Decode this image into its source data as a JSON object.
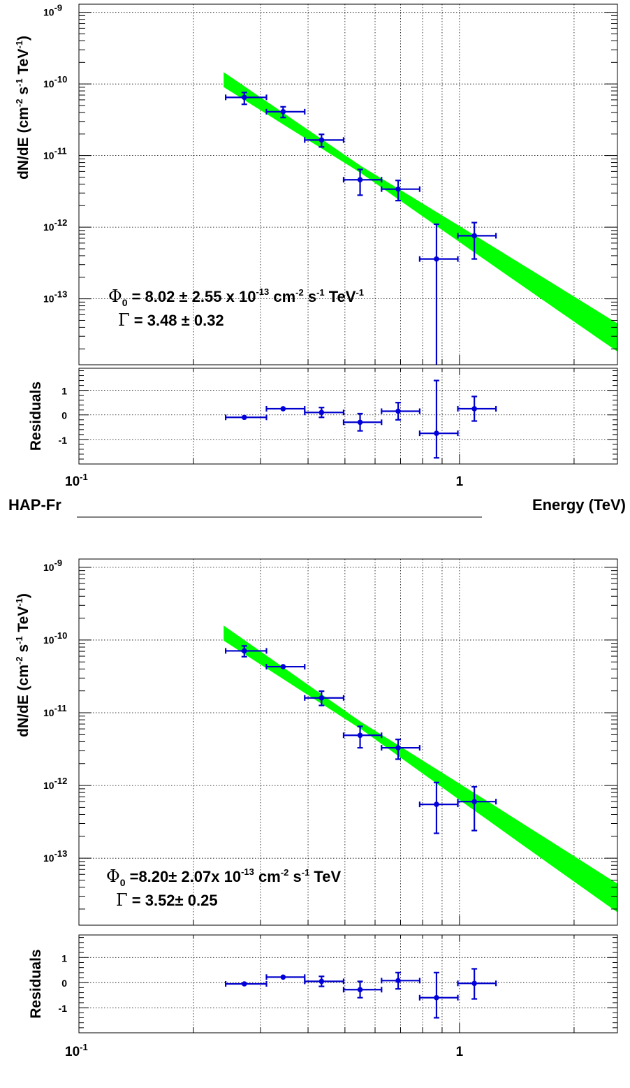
{
  "chart_data": [
    {
      "type": "scatter",
      "title": "",
      "xlabel": "Energy (TeV)",
      "ylabel": "dN/dE (cm^-2 s^-1 TeV^-1)",
      "xscale": "log",
      "yscale": "log",
      "xlim": [
        0.1,
        2.6
      ],
      "ylim": [
        1.2e-14,
        1.3e-09
      ],
      "grid": true,
      "corner_label": "HAP-Fr",
      "annotation": {
        "phi_text": " = 8.02 ± 2.55 x 10",
        "phi_exp": "-13",
        "phi_units": " cm",
        "gamma_text": " = 3.48 ± 0.32"
      },
      "fit": {
        "norm": 8.02e-13,
        "gamma": 3.48,
        "band_xrange": [
          0.24,
          2.6
        ]
      },
      "points": [
        {
          "x": 0.272,
          "y": 6.5e-11,
          "xlo": 0.243,
          "xhi": 0.311,
          "ylo": 5.2e-11,
          "yhi": 7.6e-11
        },
        {
          "x": 0.344,
          "y": 4.1e-11,
          "xlo": 0.311,
          "xhi": 0.392,
          "ylo": 3.4e-11,
          "yhi": 4.8e-11
        },
        {
          "x": 0.434,
          "y": 1.65e-11,
          "xlo": 0.392,
          "xhi": 0.496,
          "ylo": 1.32e-11,
          "yhi": 1.98e-11
        },
        {
          "x": 0.548,
          "y": 4.6e-12,
          "xlo": 0.496,
          "xhi": 0.624,
          "ylo": 2.8e-12,
          "yhi": 6.4e-12
        },
        {
          "x": 0.69,
          "y": 3.4e-12,
          "xlo": 0.624,
          "xhi": 0.786,
          "ylo": 2.35e-12,
          "yhi": 4.5e-12
        },
        {
          "x": 0.87,
          "y": 3.6e-13,
          "xlo": 0.786,
          "xhi": 0.99,
          "ylo": 1e-14,
          "yhi": 1.1e-12
        },
        {
          "x": 1.094,
          "y": 7.6e-13,
          "xlo": 0.99,
          "xhi": 1.247,
          "ylo": 3.6e-13,
          "yhi": 1.16e-12
        }
      ],
      "residuals": {
        "ylabel": "Residuals",
        "ylim": [
          -2.0,
          1.9
        ],
        "yticks": [
          "1",
          "0",
          "-1"
        ],
        "points": [
          {
            "x": 0.272,
            "y": -0.1,
            "xlo": 0.243,
            "xhi": 0.311,
            "ylo": -0.1,
            "yhi": -0.1
          },
          {
            "x": 0.344,
            "y": 0.25,
            "xlo": 0.311,
            "xhi": 0.392,
            "ylo": 0.25,
            "yhi": 0.25
          },
          {
            "x": 0.434,
            "y": 0.1,
            "xlo": 0.392,
            "xhi": 0.496,
            "ylo": -0.1,
            "yhi": 0.3
          },
          {
            "x": 0.548,
            "y": -0.3,
            "xlo": 0.496,
            "xhi": 0.624,
            "ylo": -0.65,
            "yhi": 0.05
          },
          {
            "x": 0.69,
            "y": 0.15,
            "xlo": 0.624,
            "xhi": 0.786,
            "ylo": -0.2,
            "yhi": 0.5
          },
          {
            "x": 0.87,
            "y": -0.75,
            "xlo": 0.786,
            "xhi": 0.99,
            "ylo": -1.75,
            "yhi": 1.4
          },
          {
            "x": 1.094,
            "y": 0.25,
            "xlo": 0.99,
            "xhi": 1.247,
            "ylo": -0.25,
            "yhi": 0.75
          }
        ]
      }
    },
    {
      "type": "scatter",
      "title": "",
      "xlabel": "",
      "ylabel": "dN/dE (cm^-2 s^-1 TeV^-1)",
      "xscale": "log",
      "yscale": "log",
      "xlim": [
        0.1,
        2.6
      ],
      "ylim": [
        1.2e-14,
        1.3e-09
      ],
      "grid": true,
      "corner_label": "",
      "annotation": {
        "phi_text": " =8.20± 2.07x 10",
        "phi_exp": "-13",
        "phi_units": " cm",
        "gamma_text": " = 3.52± 0.25"
      },
      "fit": {
        "norm": 8.2e-13,
        "gamma": 3.52,
        "band_xrange": [
          0.24,
          2.6
        ]
      },
      "points": [
        {
          "x": 0.272,
          "y": 7.1e-11,
          "xlo": 0.243,
          "xhi": 0.311,
          "ylo": 5.9e-11,
          "yhi": 8.3e-11
        },
        {
          "x": 0.344,
          "y": 4.3e-11,
          "xlo": 0.311,
          "xhi": 0.392,
          "ylo": 4.3e-11,
          "yhi": 4.3e-11
        },
        {
          "x": 0.434,
          "y": 1.6e-11,
          "xlo": 0.392,
          "xhi": 0.496,
          "ylo": 1.26e-11,
          "yhi": 1.98e-11
        },
        {
          "x": 0.548,
          "y": 4.9e-12,
          "xlo": 0.496,
          "xhi": 0.624,
          "ylo": 3.3e-12,
          "yhi": 6.5e-12
        },
        {
          "x": 0.69,
          "y": 3.3e-12,
          "xlo": 0.624,
          "xhi": 0.786,
          "ylo": 2.3e-12,
          "yhi": 4.3e-12
        },
        {
          "x": 0.87,
          "y": 5.5e-13,
          "xlo": 0.786,
          "xhi": 0.99,
          "ylo": 2.2e-13,
          "yhi": 1.1e-12
        },
        {
          "x": 1.094,
          "y": 6e-13,
          "xlo": 0.99,
          "xhi": 1.247,
          "ylo": 2.4e-13,
          "yhi": 9.6e-13
        }
      ],
      "residuals": {
        "ylabel": "Residuals",
        "ylim": [
          -2.0,
          1.9
        ],
        "yticks": [
          "1",
          "0",
          "-1"
        ],
        "points": [
          {
            "x": 0.272,
            "y": -0.05,
            "xlo": 0.243,
            "xhi": 0.311,
            "ylo": -0.05,
            "yhi": -0.05
          },
          {
            "x": 0.344,
            "y": 0.22,
            "xlo": 0.311,
            "xhi": 0.392,
            "ylo": 0.22,
            "yhi": 0.22
          },
          {
            "x": 0.434,
            "y": 0.05,
            "xlo": 0.392,
            "xhi": 0.496,
            "ylo": -0.15,
            "yhi": 0.25
          },
          {
            "x": 0.548,
            "y": -0.28,
            "xlo": 0.496,
            "xhi": 0.624,
            "ylo": -0.6,
            "yhi": 0.05
          },
          {
            "x": 0.69,
            "y": 0.08,
            "xlo": 0.624,
            "xhi": 0.786,
            "ylo": -0.25,
            "yhi": 0.4
          },
          {
            "x": 0.87,
            "y": -0.6,
            "xlo": 0.786,
            "xhi": 0.99,
            "ylo": -1.4,
            "yhi": 0.4
          },
          {
            "x": 1.094,
            "y": -0.03,
            "xlo": 0.99,
            "xhi": 1.247,
            "ylo": -0.65,
            "yhi": 0.55
          }
        ]
      }
    }
  ],
  "axis_labels": {
    "x_ticks": [
      "10",
      "1"
    ],
    "x_tick_exp": "-1",
    "y_ticks": [
      {
        "base": "10",
        "exp": "-9"
      },
      {
        "base": "10",
        "exp": "-10"
      },
      {
        "base": "10",
        "exp": "-11"
      },
      {
        "base": "10",
        "exp": "-12"
      },
      {
        "base": "10",
        "exp": "-13"
      }
    ]
  },
  "symbols": {
    "phi": "Φ",
    "phi_sub": "0",
    "gamma": "Γ",
    "cm_exp": "-2",
    "s_text": " s",
    "s_exp": "-1",
    "tev_text": " TeV",
    "tev_exp": "-1",
    "ylabel_main": "dN/dE (cm",
    "ylabel_close": ")"
  },
  "colors": {
    "band": "#00ff00",
    "points": "#0000dd",
    "errors": "#0000cc"
  }
}
